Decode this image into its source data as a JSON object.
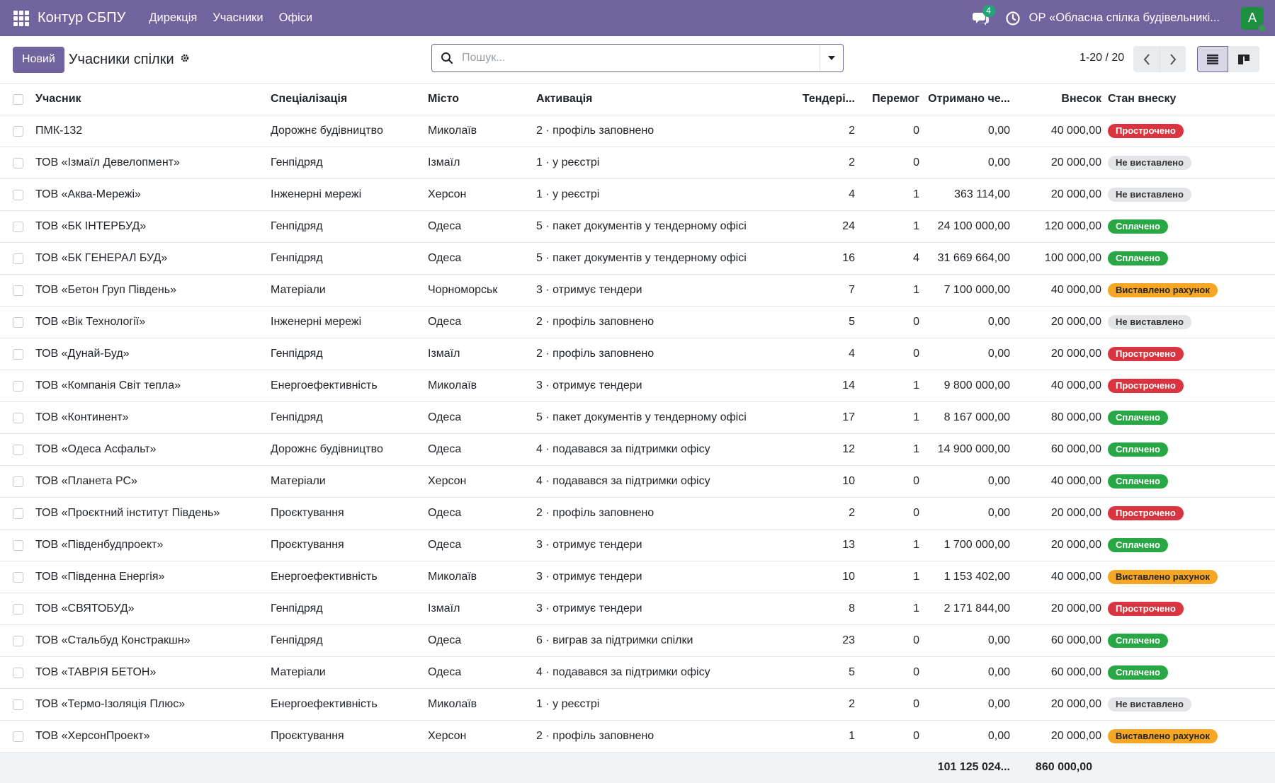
{
  "navbar": {
    "brand": "Контур СБПУ",
    "menus": [
      "Дирекція",
      "Учасники",
      "Офіси"
    ],
    "chat_count": "4",
    "company": "ОР «Обласна спілка будівельникі...",
    "avatar_letter": "A",
    "bg_color": "#71639e"
  },
  "control": {
    "new_button": "Новий",
    "title": "Учасники спілки",
    "search_placeholder": "Пошук...",
    "pager": "1-20 / 20"
  },
  "table": {
    "headers": {
      "name": "Учасник",
      "spec": "Спеціалізація",
      "city": "Місто",
      "activation": "Активація",
      "tenders": "Тендері...",
      "won": "Перемог",
      "received": "Отримано че...",
      "fee": "Внесок",
      "status": "Стан внеску"
    },
    "rows": [
      {
        "name": "ПМК-132",
        "spec": "Дорожнє будівництво",
        "city": "Миколаїв",
        "activation": "2 · профіль заповнено",
        "tenders": "2",
        "won": "0",
        "received": "0,00",
        "fee": "40 000,00",
        "status": "Прострочено",
        "status_type": "overdue"
      },
      {
        "name": "ТОВ «Ізмаїл Девелопмент»",
        "spec": "Генпідряд",
        "city": "Ізмаїл",
        "activation": "1 · у реєстрі",
        "tenders": "2",
        "won": "0",
        "received": "0,00",
        "fee": "20 000,00",
        "status": "Не виставлено",
        "status_type": "none"
      },
      {
        "name": "ТОВ «Аква-Мережі»",
        "spec": "Інженерні мережі",
        "city": "Херсон",
        "activation": "1 · у реєстрі",
        "tenders": "4",
        "won": "1",
        "received": "363 114,00",
        "fee": "20 000,00",
        "status": "Не виставлено",
        "status_type": "none"
      },
      {
        "name": "ТОВ «БК ІНТЕРБУД»",
        "spec": "Генпідряд",
        "city": "Одеса",
        "activation": "5 · пакет документів у тендерному офісі",
        "tenders": "24",
        "won": "1",
        "received": "24 100 000,00",
        "fee": "120 000,00",
        "status": "Сплачено",
        "status_type": "paid"
      },
      {
        "name": "ТОВ «БК ГЕНЕРАЛ БУД»",
        "spec": "Генпідряд",
        "city": "Одеса",
        "activation": "5 · пакет документів у тендерному офісі",
        "tenders": "16",
        "won": "4",
        "received": "31 669 664,00",
        "fee": "100 000,00",
        "status": "Сплачено",
        "status_type": "paid"
      },
      {
        "name": "ТОВ «Бетон Груп Південь»",
        "spec": "Матеріали",
        "city": "Чорноморськ",
        "activation": "3 · отримує тендери",
        "tenders": "7",
        "won": "1",
        "received": "7 100 000,00",
        "fee": "40 000,00",
        "status": "Виставлено рахунок",
        "status_type": "invoiced"
      },
      {
        "name": "ТОВ «Вік Технології»",
        "spec": "Інженерні мережі",
        "city": "Одеса",
        "activation": "2 · профіль заповнено",
        "tenders": "5",
        "won": "0",
        "received": "0,00",
        "fee": "20 000,00",
        "status": "Не виставлено",
        "status_type": "none"
      },
      {
        "name": "ТОВ «Дунай-Буд»",
        "spec": "Генпідряд",
        "city": "Ізмаїл",
        "activation": "2 · профіль заповнено",
        "tenders": "4",
        "won": "0",
        "received": "0,00",
        "fee": "20 000,00",
        "status": "Прострочено",
        "status_type": "overdue"
      },
      {
        "name": "ТОВ «Компанія Світ тепла»",
        "spec": "Енергоефективність",
        "city": "Миколаїв",
        "activation": "3 · отримує тендери",
        "tenders": "14",
        "won": "1",
        "received": "9 800 000,00",
        "fee": "40 000,00",
        "status": "Прострочено",
        "status_type": "overdue"
      },
      {
        "name": "ТОВ «Континент»",
        "spec": "Генпідряд",
        "city": "Одеса",
        "activation": "5 · пакет документів у тендерному офісі",
        "tenders": "17",
        "won": "1",
        "received": "8 167 000,00",
        "fee": "80 000,00",
        "status": "Сплачено",
        "status_type": "paid"
      },
      {
        "name": "ТОВ «Одеса Асфальт»",
        "spec": "Дорожнє будівництво",
        "city": "Одеса",
        "activation": "4 · подавався за підтримки офісу",
        "tenders": "12",
        "won": "1",
        "received": "14 900 000,00",
        "fee": "60 000,00",
        "status": "Сплачено",
        "status_type": "paid"
      },
      {
        "name": "ТОВ «Планета РС»",
        "spec": "Матеріали",
        "city": "Херсон",
        "activation": "4 · подавався за підтримки офісу",
        "tenders": "10",
        "won": "0",
        "received": "0,00",
        "fee": "40 000,00",
        "status": "Сплачено",
        "status_type": "paid"
      },
      {
        "name": "ТОВ «Проєктний інститут Південь»",
        "spec": "Проєктування",
        "city": "Одеса",
        "activation": "2 · профіль заповнено",
        "tenders": "2",
        "won": "0",
        "received": "0,00",
        "fee": "20 000,00",
        "status": "Прострочено",
        "status_type": "overdue"
      },
      {
        "name": "ТОВ «Південбудпроект»",
        "spec": "Проєктування",
        "city": "Одеса",
        "activation": "3 · отримує тендери",
        "tenders": "13",
        "won": "1",
        "received": "1 700 000,00",
        "fee": "20 000,00",
        "status": "Сплачено",
        "status_type": "paid"
      },
      {
        "name": "ТОВ «Південна Енергія»",
        "spec": "Енергоефективність",
        "city": "Миколаїв",
        "activation": "3 · отримує тендери",
        "tenders": "10",
        "won": "1",
        "received": "1 153 402,00",
        "fee": "40 000,00",
        "status": "Виставлено рахунок",
        "status_type": "invoiced"
      },
      {
        "name": "ТОВ «СВЯТОБУД»",
        "spec": "Генпідряд",
        "city": "Ізмаїл",
        "activation": "3 · отримує тендери",
        "tenders": "8",
        "won": "1",
        "received": "2 171 844,00",
        "fee": "20 000,00",
        "status": "Прострочено",
        "status_type": "overdue"
      },
      {
        "name": "ТОВ «Стальбуд Констракшн»",
        "spec": "Генпідряд",
        "city": "Одеса",
        "activation": "6 · виграв за підтримки спілки",
        "tenders": "23",
        "won": "0",
        "received": "0,00",
        "fee": "60 000,00",
        "status": "Сплачено",
        "status_type": "paid"
      },
      {
        "name": "ТОВ «ТАВРІЯ БЕТОН»",
        "spec": "Матеріали",
        "city": "Одеса",
        "activation": "4 · подавався за підтримки офісу",
        "tenders": "5",
        "won": "0",
        "received": "0,00",
        "fee": "60 000,00",
        "status": "Сплачено",
        "status_type": "paid"
      },
      {
        "name": "ТОВ «Термо-Ізоляція Плюс»",
        "spec": "Енергоефективність",
        "city": "Миколаїв",
        "activation": "1 · у реєстрі",
        "tenders": "2",
        "won": "0",
        "received": "0,00",
        "fee": "20 000,00",
        "status": "Не виставлено",
        "status_type": "none"
      },
      {
        "name": "ТОВ «ХерсонПроект»",
        "spec": "Проєктування",
        "city": "Херсон",
        "activation": "2 · профіль заповнено",
        "tenders": "1",
        "won": "0",
        "received": "0,00",
        "fee": "20 000,00",
        "status": "Виставлено рахунок",
        "status_type": "invoiced"
      }
    ],
    "totals": {
      "received": "101 125 024...",
      "fee": "860 000,00"
    }
  }
}
